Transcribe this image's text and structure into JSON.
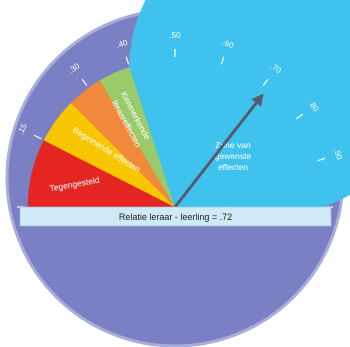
{
  "colors": {
    "background": "#7B7FC4",
    "rim": "#A9AED9",
    "zone_negative": "#E52521",
    "zone_beginning": "#F7C600",
    "zone_typical": "#F0893A",
    "zone_green": "#9ACB6A",
    "zone_desired": "#3FC3EE",
    "banner": "#CFE9F7",
    "pointer": "#555B6A"
  },
  "scale": {
    "ticks": [
      "0",
      ".15",
      ".30",
      ".40",
      ".50",
      ".60",
      ".70",
      ".80",
      ".90",
      "1.0"
    ]
  },
  "zones": {
    "negative": "Tegengesteld",
    "beginning": "Beginnende effecten",
    "typical_line1": "Kenmerkende",
    "typical_line2": "leraareffecten",
    "desired_line1": "Zone van",
    "desired_line2": "gewenste",
    "desired_line3": "effecten"
  },
  "banner": {
    "text": "Relatie leraar - leerling = .72"
  },
  "pointer": {
    "value": 0.72
  }
}
